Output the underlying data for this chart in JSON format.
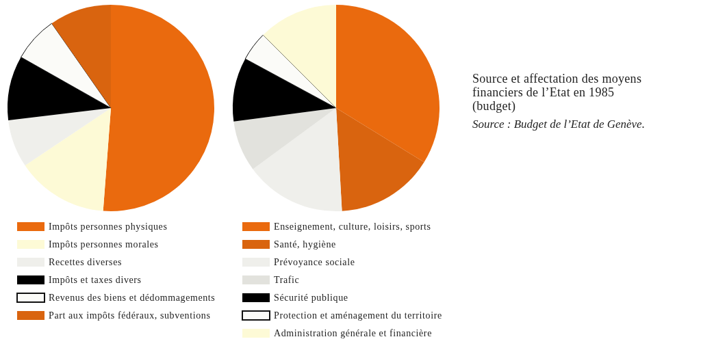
{
  "chart_data": [
    {
      "type": "pie",
      "categories": [
        "Impôts personnes physiques",
        "Impôts personnes morales",
        "Recettes diverses",
        "Impôts et taxes divers",
        "Revenus des biens et dédommagements",
        "Part aux impôts fédéraux, subventions"
      ],
      "values": [
        51.2,
        14.4,
        7.5,
        10.1,
        7.1,
        9.7
      ],
      "colors": [
        "#ea6a0e",
        "#fdfad6",
        "#efefeb",
        "#000000",
        "#fbfbf8",
        "#d9640f"
      ],
      "legend": "bottom"
    },
    {
      "type": "pie",
      "categories": [
        "Enseignement, culture, loisirs, sports",
        "Santé, hygiène",
        "Prévoyance sociale",
        "Trafic",
        "Sécurité publique",
        "Protection et aménagement du territoire",
        "Administration générale et financière"
      ],
      "values": [
        33.8,
        15.3,
        15.8,
        8.0,
        10.0,
        4.6,
        12.5
      ],
      "colors": [
        "#ea6a0e",
        "#d9640f",
        "#efefeb",
        "#e2e2dd",
        "#000000",
        "#fbfbf8",
        "#fdfad6"
      ],
      "legend": "bottom"
    },
    {
      "type": "other",
      "title": "Source et affectation des moyens financiers de l’Etat en 1985 (budget)",
      "annotations": [
        "Source : Budget de l’Etat de Genève."
      ]
    }
  ]
}
